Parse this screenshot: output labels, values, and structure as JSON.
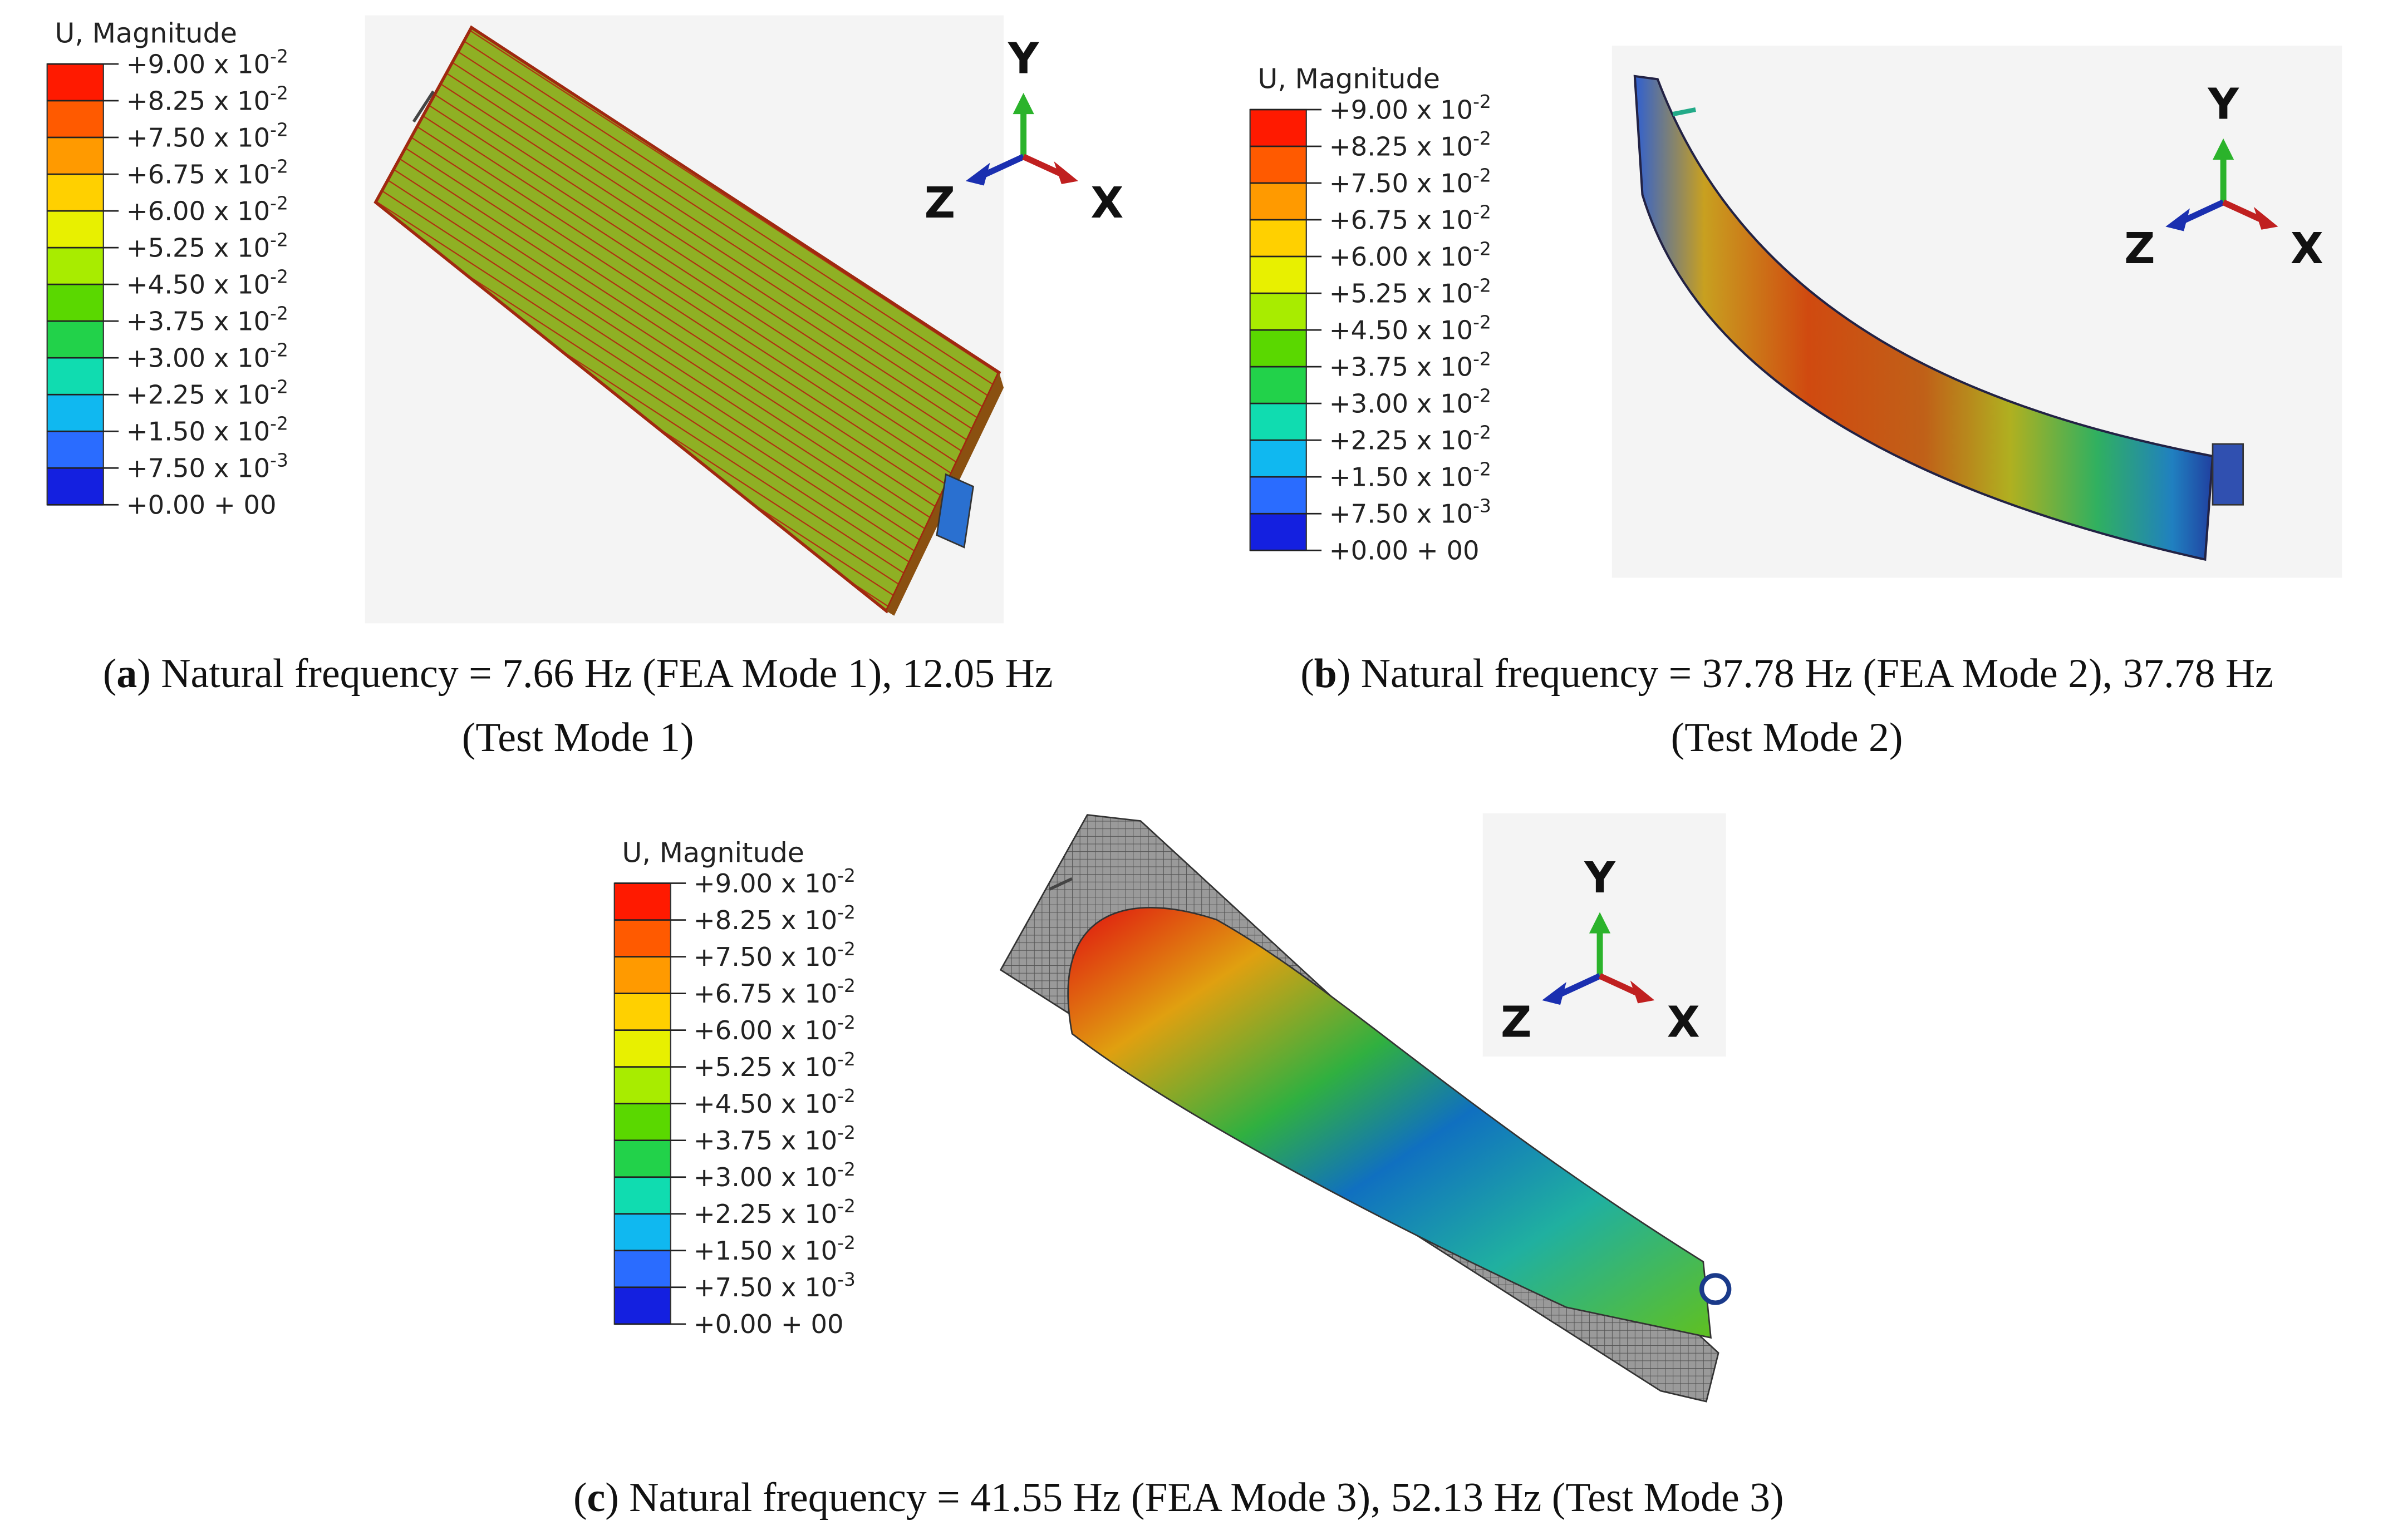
{
  "legend": {
    "title": "U, Magnitude",
    "levels": [
      {
        "text": "+9.00 x 10",
        "exponent": "-2"
      },
      {
        "text": "+8.25 x 10",
        "exponent": "-2"
      },
      {
        "text": "+7.50 x 10",
        "exponent": "-2"
      },
      {
        "text": "+6.75 x 10",
        "exponent": "-2"
      },
      {
        "text": "+6.00 x 10",
        "exponent": "-2"
      },
      {
        "text": "+5.25 x 10",
        "exponent": "-2"
      },
      {
        "text": "+4.50 x 10",
        "exponent": "-2"
      },
      {
        "text": "+3.75 x 10",
        "exponent": "-2"
      },
      {
        "text": "+3.00 x 10",
        "exponent": "-2"
      },
      {
        "text": "+2.25 x 10",
        "exponent": "-2"
      },
      {
        "text": "+1.50 x 10",
        "exponent": "-2"
      },
      {
        "text": "+7.50 x 10",
        "exponent": "-3"
      },
      {
        "text": "+0.00 + 00"
      }
    ],
    "colors": [
      "#ff1a00",
      "#ff5a00",
      "#ff9a00",
      "#ffd000",
      "#e8f000",
      "#a8ec00",
      "#5ad800",
      "#22d24a",
      "#10dcb0",
      "#10b8f0",
      "#2a6cff",
      "#1420e0"
    ]
  },
  "axes": {
    "y": "Y",
    "z": "Z",
    "x": "X"
  },
  "panels": [
    {
      "caption": [
        [
          {
            "text": "("
          },
          {
            "text": "a",
            "bold": true
          },
          {
            "text": ") Natural frequency = 7.66 Hz (FEA Mode 1), 12.05 Hz"
          }
        ],
        [
          {
            "text": "(Test Mode 1)"
          }
        ]
      ]
    },
    {
      "caption": [
        [
          {
            "text": "("
          },
          {
            "text": "b",
            "bold": true
          },
          {
            "text": ") Natural frequency = 37.78 Hz (FEA Mode 2), 37.78 Hz"
          }
        ],
        [
          {
            "text": "(Test Mode 2)"
          }
        ]
      ]
    },
    {
      "caption": [
        [
          {
            "text": "("
          },
          {
            "text": "c",
            "bold": true
          },
          {
            "text": ") Natural frequency = 41.55 Hz (FEA Mode 3), 52.13 Hz (Test Mode 3)"
          }
        ]
      ]
    }
  ]
}
